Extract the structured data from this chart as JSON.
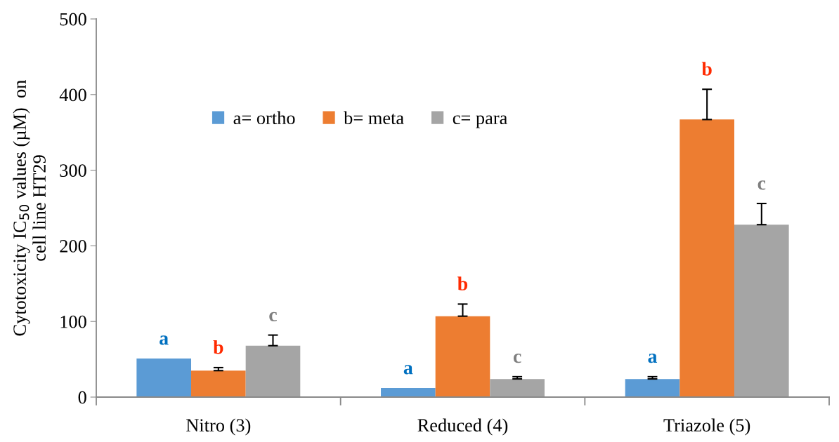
{
  "chart_data": {
    "type": "bar",
    "ylabel": "Cytotoxicity IC$_{50}$ values (µM)  on\ncell line HT29",
    "categories": [
      "Nitro (3)",
      "Reduced (4)",
      "Triazole (5)"
    ],
    "series": [
      {
        "name": "a= ortho",
        "color": "#5b9bd5",
        "values": [
          51,
          12,
          24
        ],
        "errors": [
          null,
          null,
          [
            24,
            27
          ]
        ],
        "value_labels": [
          "a",
          "a",
          "a"
        ]
      },
      {
        "name": "b= meta",
        "color": "#ed7d31",
        "values": [
          35,
          107,
          367
        ],
        "errors": [
          [
            35,
            39
          ],
          [
            107,
            123
          ],
          [
            367,
            407
          ]
        ],
        "value_labels": [
          "b",
          "b",
          "b"
        ]
      },
      {
        "name": "c= para",
        "color": "#a5a5a5",
        "values": [
          68,
          24,
          228
        ],
        "errors": [
          [
            68,
            82
          ],
          [
            24,
            27
          ],
          [
            228,
            256
          ]
        ],
        "value_labels": [
          "c",
          "c",
          "c"
        ]
      }
    ],
    "ylim": [
      0,
      500
    ],
    "yticks": [
      0,
      100,
      200,
      300,
      400,
      500
    ],
    "grid": false,
    "legend": "top"
  }
}
